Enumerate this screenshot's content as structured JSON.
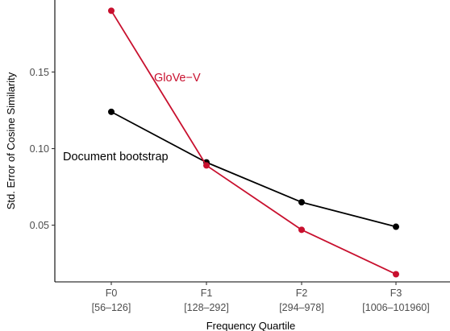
{
  "chart_data": {
    "type": "line",
    "title": "",
    "xlabel": "Frequency Quartile",
    "ylabel": "Std. Error of Cosine Similarity",
    "categories": [
      "F0",
      "F1",
      "F2",
      "F3"
    ],
    "category_sublabels": [
      "[56–126]",
      "[128–292]",
      "[294–978]",
      "[1006–101960]"
    ],
    "ylim": [
      0.013,
      0.197
    ],
    "y_ticks": [
      0.05,
      0.1,
      0.15
    ],
    "y_tick_labels": [
      "0.05",
      "0.10",
      "0.15"
    ],
    "grid": false,
    "legend": "none (direct labels on lines)",
    "series": [
      {
        "name": "Document bootstrap",
        "color": "#000000",
        "values": [
          0.124,
          0.091,
          0.065,
          0.049
        ]
      },
      {
        "name": "GloVe−V",
        "color": "#c8102e",
        "values": [
          0.19,
          0.089,
          0.047,
          0.018
        ]
      }
    ]
  }
}
